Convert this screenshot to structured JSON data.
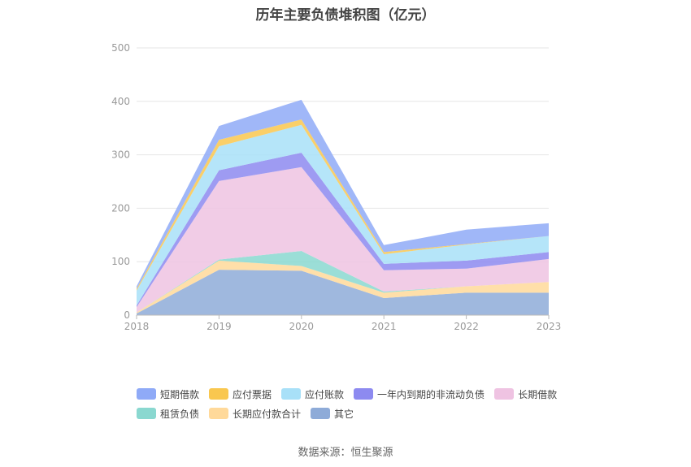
{
  "chart_data": {
    "type": "area",
    "title": "历年主要负债堆积图（亿元）",
    "source": "数据来源：恒生聚源",
    "categories": [
      "2018",
      "2019",
      "2020",
      "2021",
      "2022",
      "2023"
    ],
    "ylim": [
      0,
      500
    ],
    "yticks": [
      "0",
      "100",
      "200",
      "300",
      "400",
      "500"
    ],
    "grid": true,
    "legend_position": "bottom",
    "series": [
      {
        "name": "其它",
        "color": "#8eabd8",
        "values": [
          3,
          85,
          83,
          32,
          42,
          42
        ]
      },
      {
        "name": "长期应付款合计",
        "color": "#ffd99a",
        "values": [
          2,
          17,
          9,
          10,
          12,
          20
        ]
      },
      {
        "name": "租赁负债",
        "color": "#8ad8d0",
        "values": [
          0,
          2,
          28,
          2,
          0,
          0
        ]
      },
      {
        "name": "长期借款",
        "color": "#efc3e2",
        "values": [
          10,
          147,
          157,
          40,
          33,
          43
        ]
      },
      {
        "name": "一年内到期的非流动负债",
        "color": "#8d8af0",
        "values": [
          3,
          20,
          27,
          12,
          15,
          13
        ]
      },
      {
        "name": "应付账款",
        "color": "#a8e0f8",
        "values": [
          28,
          45,
          52,
          18,
          30,
          30
        ]
      },
      {
        "name": "应付票据",
        "color": "#f9c74f",
        "values": [
          3,
          12,
          10,
          4,
          1,
          0
        ]
      },
      {
        "name": "短期借款",
        "color": "#8faaf7",
        "values": [
          5,
          26,
          37,
          13,
          27,
          24
        ]
      }
    ]
  },
  "legend_rows": [
    [
      "短期借款",
      "应付票据",
      "应付账款",
      "一年内到期的非流动负债",
      "长期借款"
    ],
    [
      "租赁负债",
      "长期应付款合计",
      "其它"
    ]
  ]
}
